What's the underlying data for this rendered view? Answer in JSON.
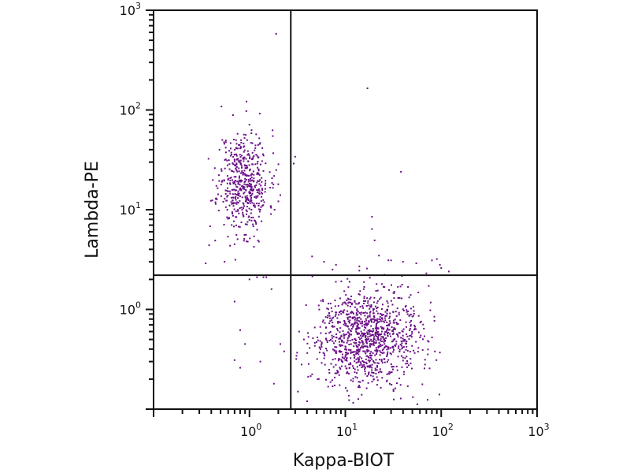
{
  "chart_data": {
    "type": "scatter",
    "title": "",
    "xlabel": "Kappa-BIOT",
    "ylabel": "Lambda-PE",
    "xscale": "log",
    "yscale": "log",
    "xlim": [
      0.1,
      1000
    ],
    "ylim": [
      0.1,
      1000
    ],
    "grid": false,
    "legend": "none",
    "point_color": "#6a0f86",
    "gates": {
      "x": 2.7,
      "y": 2.2
    },
    "x_ticks": [
      {
        "base": "10",
        "exp": "0",
        "value": 1
      },
      {
        "base": "10",
        "exp": "1",
        "value": 10
      },
      {
        "base": "10",
        "exp": "2",
        "value": 100
      },
      {
        "base": "10",
        "exp": "3",
        "value": 1000
      }
    ],
    "y_ticks": [
      {
        "base": "10",
        "exp": "0",
        "value": 1
      },
      {
        "base": "10",
        "exp": "1",
        "value": 10
      },
      {
        "base": "10",
        "exp": "2",
        "value": 100
      },
      {
        "base": "10",
        "exp": "3",
        "value": 1000
      }
    ],
    "clusters": [
      {
        "name": "lambda-positive",
        "count": 520,
        "x_log_center": -0.06,
        "x_log_sd": 0.13,
        "y_log_center": 1.28,
        "y_log_sd": 0.26,
        "seed": 11
      },
      {
        "name": "kappa-positive",
        "count": 1080,
        "x_log_center": 1.22,
        "x_log_sd": 0.27,
        "y_log_center": -0.28,
        "y_log_sd": 0.24,
        "seed": 29
      }
    ],
    "outliers": [
      {
        "x": 1.9,
        "y": 580
      },
      {
        "x": 17,
        "y": 165
      },
      {
        "x": 38,
        "y": 24
      },
      {
        "x": 19,
        "y": 8.5
      },
      {
        "x": 19,
        "y": 6.4
      },
      {
        "x": 4.5,
        "y": 3.4
      },
      {
        "x": 3.0,
        "y": 34
      },
      {
        "x": 2.9,
        "y": 29
      },
      {
        "x": 2.0,
        "y": 18
      },
      {
        "x": 1.9,
        "y": 25
      },
      {
        "x": 2.1,
        "y": 14
      },
      {
        "x": 1.0,
        "y": 2.0
      },
      {
        "x": 0.7,
        "y": 1.2
      },
      {
        "x": 0.8,
        "y": 0.62
      },
      {
        "x": 0.9,
        "y": 0.45
      },
      {
        "x": 0.7,
        "y": 0.31
      },
      {
        "x": 1.8,
        "y": 0.18
      },
      {
        "x": 2.1,
        "y": 0.45
      },
      {
        "x": 2.3,
        "y": 0.38
      },
      {
        "x": 1.3,
        "y": 0.3
      },
      {
        "x": 0.8,
        "y": 0.26
      },
      {
        "x": 1.7,
        "y": 1.6
      },
      {
        "x": 1.5,
        "y": 2.1
      },
      {
        "x": 1.4,
        "y": 2.1
      },
      {
        "x": 1.2,
        "y": 2.1
      },
      {
        "x": 0.55,
        "y": 3.0
      },
      {
        "x": 0.35,
        "y": 2.9
      },
      {
        "x": 0.44,
        "y": 4.9
      },
      {
        "x": 0.38,
        "y": 4.4
      },
      {
        "x": 6.0,
        "y": 3.0
      },
      {
        "x": 8.0,
        "y": 2.8
      },
      {
        "x": 14,
        "y": 2.7
      },
      {
        "x": 30,
        "y": 3.1
      },
      {
        "x": 40,
        "y": 3.0
      },
      {
        "x": 55,
        "y": 2.9
      },
      {
        "x": 80,
        "y": 3.1
      },
      {
        "x": 97,
        "y": 2.8
      },
      {
        "x": 90,
        "y": 3.2
      },
      {
        "x": 100,
        "y": 2.6
      },
      {
        "x": 120,
        "y": 2.4
      },
      {
        "x": 70,
        "y": 2.3
      },
      {
        "x": 3.3,
        "y": 0.6
      },
      {
        "x": 3.5,
        "y": 0.28
      },
      {
        "x": 3.7,
        "y": 0.5
      },
      {
        "x": 3.2,
        "y": 0.15
      },
      {
        "x": 4.0,
        "y": 0.12
      }
    ]
  }
}
